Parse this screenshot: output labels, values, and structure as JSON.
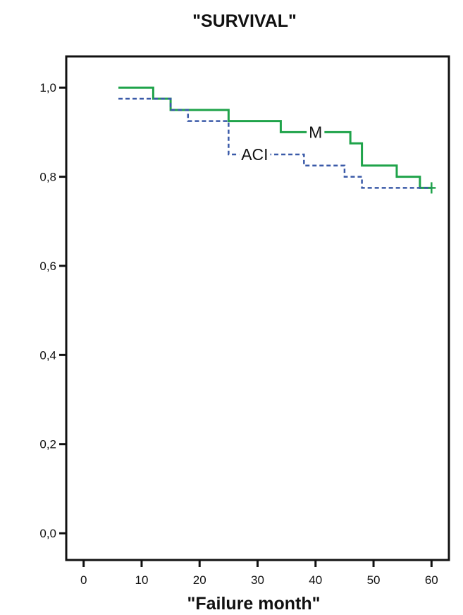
{
  "chart_data": {
    "type": "line",
    "subtype": "step (Kaplan-Meier survival)",
    "title": "\"SURVIVAL\"",
    "xlabel": "\"Failure month\"",
    "ylabel": "",
    "xlim": [
      -3,
      63
    ],
    "ylim": [
      -0.06,
      1.07
    ],
    "xticks": [
      0,
      10,
      20,
      30,
      40,
      50,
      60
    ],
    "xtick_labels": [
      "0",
      "10",
      "20",
      "30",
      "40",
      "50",
      "60"
    ],
    "yticks": [
      0.0,
      0.2,
      0.4,
      0.6,
      0.8,
      1.0
    ],
    "ytick_labels": [
      "0,0",
      "0,2",
      "0,4",
      "0,6",
      "0,8",
      "1,0"
    ],
    "grid": false,
    "legend": "none (series labelled inline)",
    "series": [
      {
        "name": "M",
        "color": "#1fa34a",
        "style": "solid",
        "steps": [
          [
            6,
            1.0
          ],
          [
            12,
            0.975
          ],
          [
            15,
            0.95
          ],
          [
            25,
            0.925
          ],
          [
            34,
            0.9
          ],
          [
            46,
            0.875
          ],
          [
            48,
            0.825
          ],
          [
            54,
            0.8
          ],
          [
            58,
            0.775
          ],
          [
            60,
            0.775
          ]
        ],
        "censored": [
          [
            60,
            0.775
          ]
        ]
      },
      {
        "name": "ACI",
        "color": "#3a5aa8",
        "style": "dashed",
        "steps": [
          [
            6,
            0.975
          ],
          [
            15,
            0.95
          ],
          [
            18,
            0.925
          ],
          [
            25,
            0.85
          ],
          [
            38,
            0.825
          ],
          [
            45,
            0.8
          ],
          [
            48,
            0.775
          ],
          [
            60,
            0.775
          ]
        ],
        "censored": []
      }
    ]
  }
}
